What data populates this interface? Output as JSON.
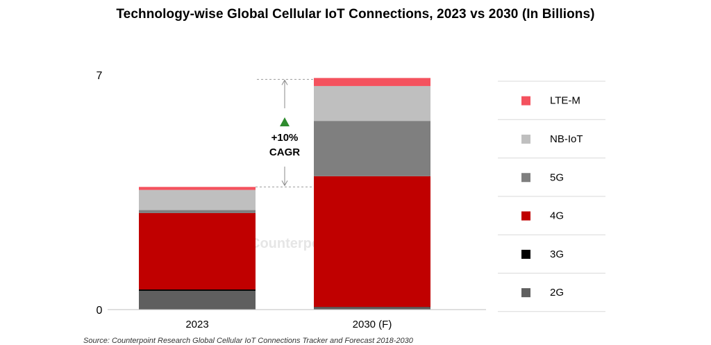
{
  "title": "Technology-wise Global Cellular IoT Connections, 2023 vs 2030 (In Billions)",
  "source": "Source: Counterpoint Research Global Cellular IoT Connections Tracker and Forecast 2018-2030",
  "watermark": "Counterpoint",
  "annotation": {
    "line1": "+10%",
    "line2": "CAGR",
    "color": "#2e8b2e"
  },
  "chart_data": {
    "type": "bar",
    "stacked": true,
    "categories": [
      "2023",
      "2030 (F)"
    ],
    "ylim": [
      0,
      7
    ],
    "yticks": [
      "0",
      "7"
    ],
    "series": [
      {
        "name": "2G",
        "color": "#5f5f5f",
        "values": [
          0.56,
          0.07
        ]
      },
      {
        "name": "3G",
        "color": "#000000",
        "values": [
          0.04,
          0.01
        ]
      },
      {
        "name": "4G",
        "color": "#c00000",
        "values": [
          2.28,
          3.9
        ]
      },
      {
        "name": "5G",
        "color": "#7f7f7f",
        "values": [
          0.09,
          1.65
        ]
      },
      {
        "name": "NB-IoT",
        "color": "#bfbfbf",
        "values": [
          0.6,
          1.04
        ]
      },
      {
        "name": "LTE-M",
        "color": "#f4525e",
        "values": [
          0.09,
          0.24
        ]
      }
    ],
    "legend_order": [
      "LTE-M",
      "NB-IoT",
      "5G",
      "4G",
      "3G",
      "2G"
    ],
    "legend_position": "right"
  }
}
